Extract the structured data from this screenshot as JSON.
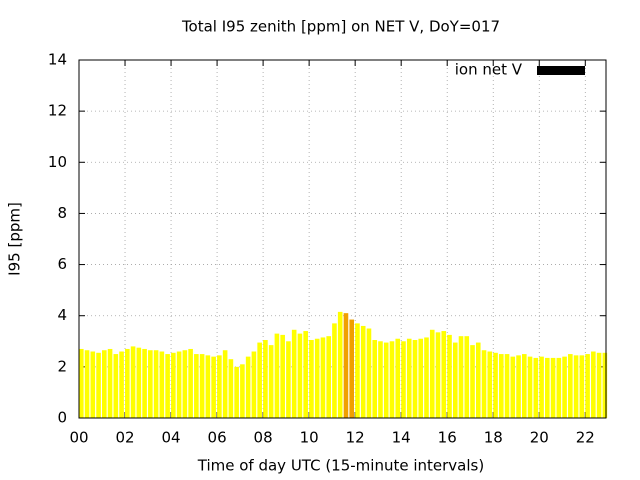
{
  "chart_data": {
    "type": "bar",
    "title": "Total I95 zenith [ppm] on NET V, DoY=017",
    "x_label": "Time of day UTC (15-minute intervals)",
    "y_label": "I95 [ppm]",
    "series": [
      {
        "name": "ion net V",
        "color": "#ffff00",
        "legend_color": "#000000",
        "highlight": {
          "indices": [
            46,
            47
          ],
          "color": "#f0a000"
        },
        "values": [
          2.7,
          2.65,
          2.6,
          2.55,
          2.65,
          2.7,
          2.5,
          2.6,
          2.7,
          2.8,
          2.75,
          2.7,
          2.65,
          2.65,
          2.6,
          2.5,
          2.55,
          2.6,
          2.65,
          2.7,
          2.5,
          2.5,
          2.45,
          2.4,
          2.45,
          2.65,
          2.3,
          2.0,
          2.1,
          2.4,
          2.6,
          2.95,
          3.05,
          2.85,
          3.3,
          3.25,
          3.0,
          3.45,
          3.3,
          3.4,
          3.05,
          3.1,
          3.15,
          3.2,
          3.7,
          4.15,
          4.1,
          3.85,
          3.7,
          3.6,
          3.5,
          3.05,
          3.0,
          2.95,
          3.0,
          3.1,
          3.0,
          3.1,
          3.05,
          3.1,
          3.15,
          3.45,
          3.35,
          3.4,
          3.25,
          2.95,
          3.2,
          3.2,
          2.85,
          2.95,
          2.65,
          2.6,
          2.55,
          2.5,
          2.5,
          2.4,
          2.45,
          2.5,
          2.4,
          2.35,
          2.4,
          2.35,
          2.35,
          2.35,
          2.4,
          2.5,
          2.45,
          2.45,
          2.5,
          2.6,
          2.55,
          2.55
        ]
      }
    ],
    "x": [
      0,
      0.25,
      0.5,
      0.75,
      1,
      1.25,
      1.5,
      1.75,
      2,
      2.25,
      2.5,
      2.75,
      3,
      3.25,
      3.5,
      3.75,
      4,
      4.25,
      4.5,
      4.75,
      5,
      5.25,
      5.5,
      5.75,
      6,
      6.25,
      6.5,
      6.75,
      7,
      7.25,
      7.5,
      7.75,
      8,
      8.25,
      8.5,
      8.75,
      9,
      9.25,
      9.5,
      9.75,
      10,
      10.25,
      10.5,
      10.75,
      11,
      11.25,
      11.5,
      11.75,
      12,
      12.25,
      12.5,
      12.75,
      13,
      13.25,
      13.5,
      13.75,
      14,
      14.25,
      14.5,
      14.75,
      15,
      15.25,
      15.5,
      15.75,
      16,
      16.25,
      16.5,
      16.75,
      17,
      17.25,
      17.5,
      17.75,
      18,
      18.25,
      18.5,
      18.75,
      19,
      19.25,
      19.5,
      19.75,
      20,
      20.25,
      20.5,
      20.75,
      21,
      21.25,
      21.5,
      21.75,
      22,
      22.25,
      22.5,
      22.75
    ],
    "bar_width": 0.2,
    "xlim": [
      0,
      22.9
    ],
    "xticks": [
      {
        "value": 0,
        "label": "00"
      },
      {
        "value": 2,
        "label": "02"
      },
      {
        "value": 4,
        "label": "04"
      },
      {
        "value": 6,
        "label": "06"
      },
      {
        "value": 8,
        "label": "08"
      },
      10,
      12,
      14,
      16,
      18,
      20,
      22
    ],
    "ylim": [
      0,
      14
    ],
    "yticks": [
      0,
      2,
      4,
      6,
      8,
      10,
      12,
      14
    ],
    "grid": true,
    "legend": "top-right"
  }
}
